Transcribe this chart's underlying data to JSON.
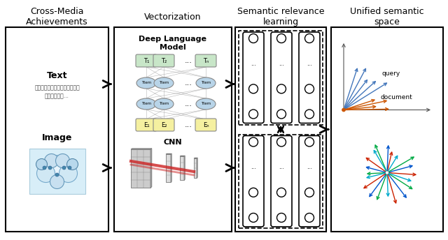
{
  "col_titles": [
    "Cross-Media\nAchievements",
    "Vectorization",
    "Semantic relevance\nlearning",
    "Unified semantic\nspace"
  ],
  "col_title_fontsize": 9,
  "background": "white",
  "text_color": "black",
  "chinese_text1": "当今世界上作为材料使用的大量",
  "chinese_text2": "高分子化合物...",
  "label_text": "Text",
  "label_image": "Image",
  "label_dlm": "Deep Language\nModel",
  "label_cnn": "CNN",
  "green_node": "#c8e6c8",
  "blue_node": "#b8d4e8",
  "yellow_node": "#f5f0a0",
  "query_arrows": [
    72,
    62,
    52,
    42,
    32
  ],
  "doc_arrows": [
    18,
    12,
    6,
    1
  ],
  "radial_colors": [
    "#cc2200",
    "#0055cc",
    "#00aa44",
    "#00aacc"
  ],
  "n_radial": 20
}
